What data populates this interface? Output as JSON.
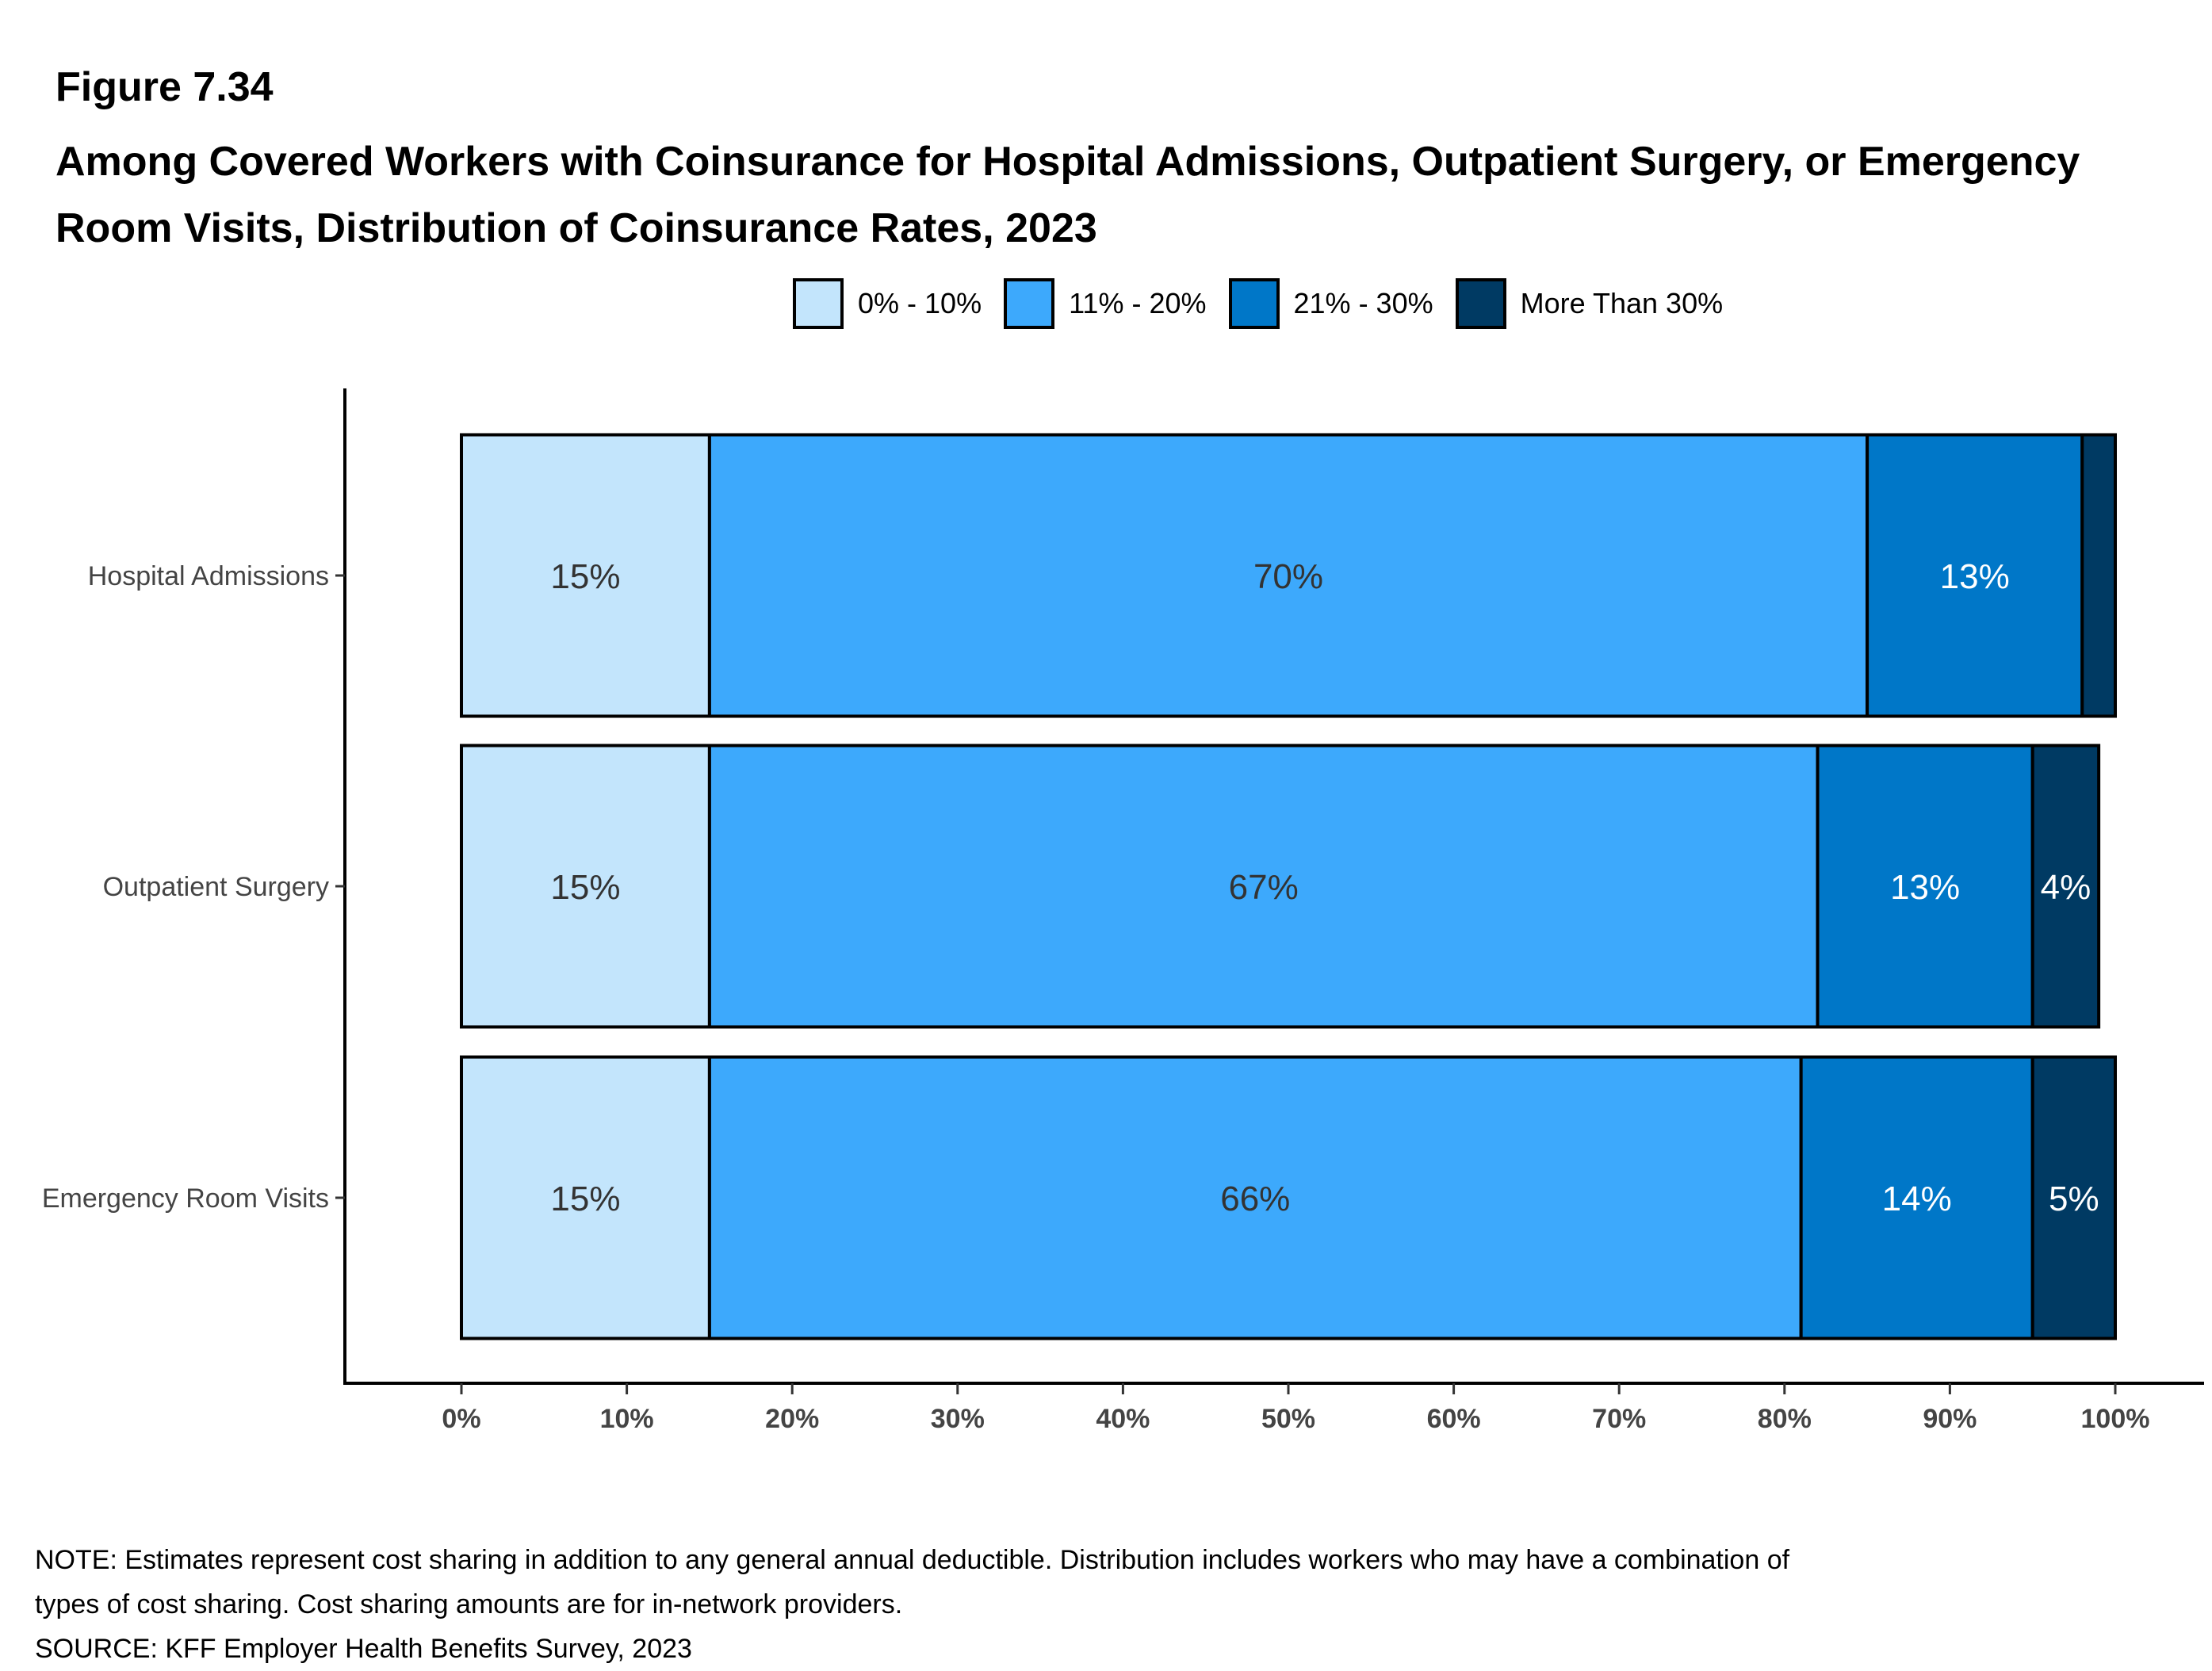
{
  "figure_label": "Figure 7.34",
  "title": "Among Covered Workers with Coinsurance for Hospital Admissions, Outpatient Surgery, or Emergency Room Visits, Distribution of Coinsurance Rates, 2023",
  "legend": [
    {
      "label": "0% - 10%",
      "color": "#C3E5FC"
    },
    {
      "label": "11% - 20%",
      "color": "#3DA9FC"
    },
    {
      "label": "21% - 30%",
      "color": "#0077C8"
    },
    {
      "label": "More Than 30%",
      "color": "#003A63"
    }
  ],
  "notes": [
    "NOTE: Estimates represent cost sharing in addition to any general annual deductible. Distribution includes workers who may have a combination of",
    "types of cost sharing. Cost sharing amounts are for in-network providers.",
    "SOURCE: KFF Employer Health Benefits Survey, 2023"
  ],
  "chart_data": {
    "type": "bar",
    "orientation": "horizontal",
    "stacked": true,
    "title": "Among Covered Workers with Coinsurance for Hospital Admissions, Outpatient Surgery, or Emergency Room Visits, Distribution of Coinsurance Rates, 2023",
    "xlabel": "",
    "ylabel": "",
    "xlim": [
      0,
      100
    ],
    "x_ticks": [
      "0%",
      "10%",
      "20%",
      "30%",
      "40%",
      "50%",
      "60%",
      "70%",
      "80%",
      "90%",
      "100%"
    ],
    "categories": [
      "Hospital Admissions",
      "Outpatient Surgery",
      "Emergency Room Visits"
    ],
    "series": [
      {
        "name": "0% - 10%",
        "color": "#C3E5FC",
        "values": [
          15,
          15,
          15
        ],
        "labels": [
          "15%",
          "15%",
          "15%"
        ],
        "label_color": "#333333"
      },
      {
        "name": "11% - 20%",
        "color": "#3DA9FC",
        "values": [
          70,
          67,
          66
        ],
        "labels": [
          "70%",
          "67%",
          "66%"
        ],
        "label_color": "#333333"
      },
      {
        "name": "21% - 30%",
        "color": "#0077C8",
        "values": [
          13,
          13,
          14
        ],
        "labels": [
          "13%",
          "13%",
          "14%"
        ],
        "label_color": "#FFFFFF"
      },
      {
        "name": "More Than 30%",
        "color": "#003A63",
        "values": [
          2,
          4,
          5
        ],
        "labels": [
          "",
          "4%",
          "5%"
        ],
        "label_color": "#FFFFFF"
      }
    ],
    "legend_position": "top",
    "grid": false
  }
}
